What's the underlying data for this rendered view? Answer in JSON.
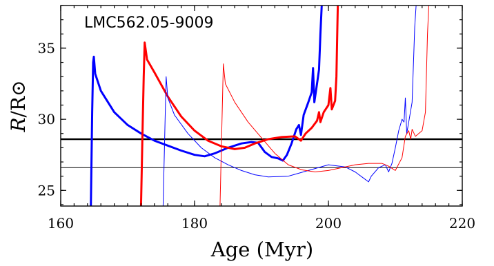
{
  "chart_data": {
    "type": "line",
    "annotation": "LMC562.05-9009",
    "xlabel": "Age (Myr)",
    "ylabel_italic": "R",
    "ylabel_rest": "/R⊙",
    "xlim": [
      160,
      220
    ],
    "ylim": [
      23.9,
      38.0
    ],
    "x_ticks": [
      160,
      180,
      200,
      220
    ],
    "x_tick_labels": [
      "160",
      "180",
      "200",
      "220"
    ],
    "y_ticks": [
      25,
      30,
      35
    ],
    "y_tick_labels": [
      "25",
      "30",
      "35"
    ],
    "x_minor_step": 2,
    "y_minor_step": 1,
    "grid": false,
    "legend": "none",
    "hlines": [
      {
        "y": 28.6,
        "color": "#000000",
        "weight": "thick"
      },
      {
        "y": 26.6,
        "color": "#000000",
        "weight": "thin"
      }
    ],
    "series": [
      {
        "color": "#0000ff",
        "weight": "thick",
        "points": [
          [
            164.5,
            23.9
          ],
          [
            164.7,
            30.5
          ],
          [
            164.85,
            34.0
          ],
          [
            164.95,
            34.4
          ],
          [
            165.15,
            33.2
          ],
          [
            166.0,
            32.0
          ],
          [
            168.0,
            30.5
          ],
          [
            170.0,
            29.6
          ],
          [
            172.0,
            29.0
          ],
          [
            174.0,
            28.5
          ],
          [
            176.0,
            28.15
          ],
          [
            178.0,
            27.8
          ],
          [
            180.0,
            27.5
          ],
          [
            181.5,
            27.4
          ],
          [
            183.0,
            27.6
          ],
          [
            185.0,
            28.0
          ],
          [
            187.0,
            28.3
          ],
          [
            188.5,
            28.4
          ],
          [
            189.5,
            28.35
          ],
          [
            190.5,
            27.7
          ],
          [
            191.5,
            27.35
          ],
          [
            192.5,
            27.25
          ],
          [
            193.2,
            27.1
          ],
          [
            193.8,
            27.5
          ],
          [
            194.5,
            28.3
          ],
          [
            195.2,
            29.3
          ],
          [
            195.6,
            29.6
          ],
          [
            195.9,
            28.9
          ],
          [
            196.3,
            30.3
          ],
          [
            197.0,
            31.2
          ],
          [
            197.5,
            31.9
          ],
          [
            197.7,
            33.6
          ],
          [
            197.9,
            31.2
          ],
          [
            198.3,
            32.5
          ],
          [
            198.6,
            33.5
          ],
          [
            198.8,
            36.0
          ],
          [
            199.0,
            38.0
          ]
        ]
      },
      {
        "color": "#ff0000",
        "weight": "thick",
        "points": [
          [
            172.0,
            23.9
          ],
          [
            172.2,
            28.5
          ],
          [
            172.4,
            33.0
          ],
          [
            172.55,
            35.4
          ],
          [
            172.9,
            34.2
          ],
          [
            174.0,
            33.3
          ],
          [
            176.0,
            31.6
          ],
          [
            178.0,
            30.2
          ],
          [
            180.0,
            29.2
          ],
          [
            182.0,
            28.5
          ],
          [
            184.0,
            28.1
          ],
          [
            186.0,
            27.9
          ],
          [
            187.5,
            28.0
          ],
          [
            189.0,
            28.3
          ],
          [
            191.0,
            28.6
          ],
          [
            193.0,
            28.75
          ],
          [
            195.0,
            28.8
          ],
          [
            195.9,
            28.5
          ],
          [
            196.6,
            29.0
          ],
          [
            197.5,
            29.4
          ],
          [
            198.3,
            29.9
          ],
          [
            198.6,
            30.5
          ],
          [
            198.8,
            29.8
          ],
          [
            199.3,
            30.5
          ],
          [
            200.0,
            31.0
          ],
          [
            200.3,
            32.2
          ],
          [
            200.5,
            30.7
          ],
          [
            201.0,
            31.3
          ],
          [
            201.2,
            33.0
          ],
          [
            201.4,
            38.0
          ]
        ]
      },
      {
        "color": "#0000ff",
        "weight": "thin",
        "points": [
          [
            175.3,
            23.9
          ],
          [
            175.6,
            30.0
          ],
          [
            175.75,
            33.0
          ],
          [
            176.0,
            31.5
          ],
          [
            177.0,
            30.3
          ],
          [
            179.0,
            29.0
          ],
          [
            181.0,
            28.0
          ],
          [
            183.0,
            27.3
          ],
          [
            185.0,
            26.8
          ],
          [
            187.0,
            26.4
          ],
          [
            189.0,
            26.1
          ],
          [
            191.0,
            25.95
          ],
          [
            194.0,
            26.0
          ],
          [
            197.0,
            26.4
          ],
          [
            200.0,
            26.8
          ],
          [
            202.5,
            26.65
          ],
          [
            204.0,
            26.3
          ],
          [
            205.0,
            25.95
          ],
          [
            206.0,
            25.6
          ],
          [
            206.4,
            26.0
          ],
          [
            207.5,
            26.6
          ],
          [
            208.5,
            26.8
          ],
          [
            209.0,
            26.3
          ],
          [
            209.5,
            26.9
          ],
          [
            210.0,
            28.0
          ],
          [
            210.5,
            29.2
          ],
          [
            211.0,
            30.0
          ],
          [
            211.3,
            29.8
          ],
          [
            211.5,
            31.5
          ],
          [
            211.7,
            29.0
          ],
          [
            212.0,
            29.8
          ],
          [
            212.5,
            31.2
          ],
          [
            212.9,
            36.5
          ],
          [
            213.1,
            38.0
          ]
        ]
      },
      {
        "color": "#ff0000",
        "weight": "thin",
        "points": [
          [
            183.8,
            23.9
          ],
          [
            184.1,
            30.0
          ],
          [
            184.3,
            33.9
          ],
          [
            184.6,
            32.5
          ],
          [
            186.0,
            31.2
          ],
          [
            188.0,
            29.8
          ],
          [
            190.0,
            28.7
          ],
          [
            192.0,
            27.6
          ],
          [
            194.0,
            26.8
          ],
          [
            196.0,
            26.45
          ],
          [
            198.0,
            26.3
          ],
          [
            200.0,
            26.4
          ],
          [
            202.0,
            26.6
          ],
          [
            204.0,
            26.8
          ],
          [
            206.0,
            26.9
          ],
          [
            208.0,
            26.9
          ],
          [
            209.0,
            26.7
          ],
          [
            210.0,
            26.4
          ],
          [
            211.0,
            27.3
          ],
          [
            211.5,
            28.8
          ],
          [
            212.0,
            29.2
          ],
          [
            212.3,
            28.6
          ],
          [
            212.5,
            29.3
          ],
          [
            213.0,
            28.8
          ],
          [
            214.0,
            29.2
          ],
          [
            214.5,
            30.5
          ],
          [
            214.8,
            36.0
          ],
          [
            215.0,
            38.0
          ]
        ]
      }
    ]
  }
}
